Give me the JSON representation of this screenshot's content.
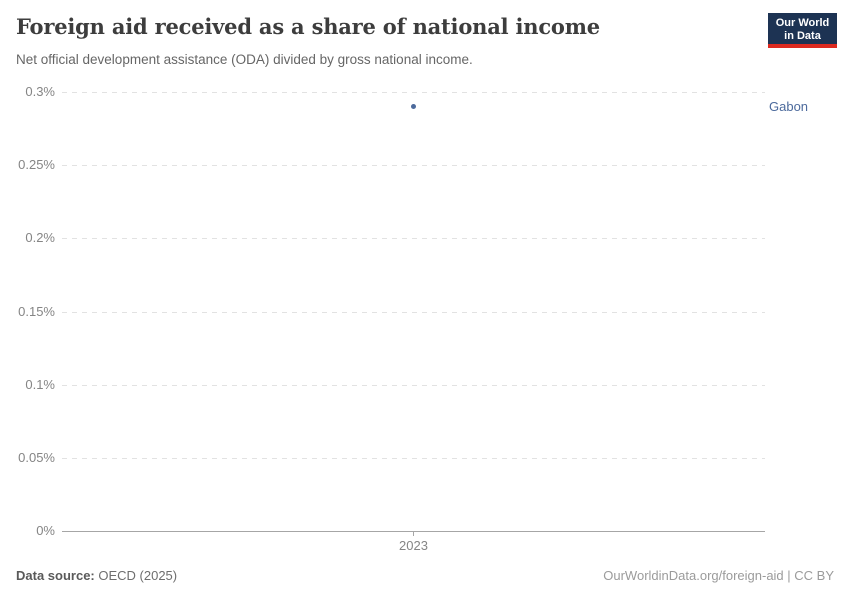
{
  "header": {
    "title": "Foreign aid received as a share of national income",
    "subtitle": "Net official development assistance (ODA) divided by gross national income.",
    "logo": {
      "line1": "Our World",
      "line2": "in Data"
    }
  },
  "chart_data": {
    "type": "scatter",
    "title": "Foreign aid received as a share of national income",
    "xlabel": "",
    "ylabel": "",
    "ylim": [
      0,
      0.3
    ],
    "grid": "horizontal-dashed",
    "legend_position": "entity-label-right",
    "x_ticks": [
      "2023"
    ],
    "y_ticks": [
      {
        "value": 0,
        "label": "0%"
      },
      {
        "value": 0.05,
        "label": "0.05%"
      },
      {
        "value": 0.1,
        "label": "0.1%"
      },
      {
        "value": 0.15,
        "label": "0.15%"
      },
      {
        "value": 0.2,
        "label": "0.2%"
      },
      {
        "value": 0.25,
        "label": "0.25%"
      },
      {
        "value": 0.3,
        "label": "0.3%"
      }
    ],
    "series": [
      {
        "name": "Gabon",
        "color": "#4C6A9C",
        "points": [
          {
            "x": "2023",
            "y": 0.29
          }
        ]
      }
    ]
  },
  "footer": {
    "source_label": "Data source:",
    "source_value": " OECD (2025)",
    "credit": "OurWorldinData.org/foreign-aid | CC BY"
  },
  "colors": {
    "logo_navy": "#1d3353",
    "logo_red": "#dc2a20",
    "grid": "#e2e2e2",
    "axis": "#a6a6a6",
    "series_gabon": "#4C6A9C"
  }
}
